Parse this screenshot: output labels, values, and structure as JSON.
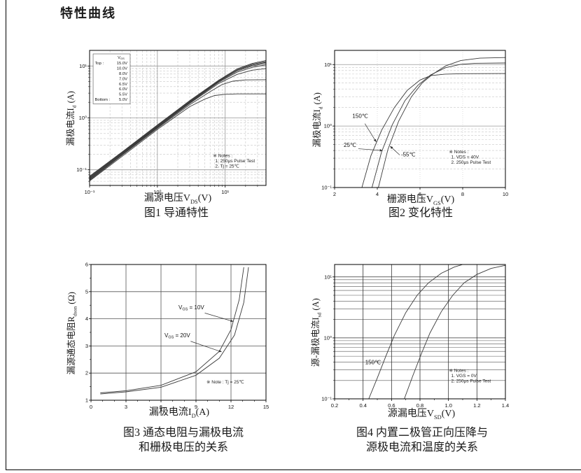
{
  "page": {
    "title": "特性曲线"
  },
  "chart_data": [
    {
      "id": "fig1",
      "type": "line",
      "caption_lines": [
        "图1 导通特性",
        ""
      ],
      "xlabel_parts": {
        "pre": "漏源电压V",
        "sub": "DS",
        "post": "(V)"
      },
      "ylabel_parts": {
        "pre": "漏极电流I",
        "sub": "d",
        "post": " (A)"
      },
      "xscale": "log",
      "yscale": "log",
      "xlim": [
        0.1,
        40
      ],
      "ylim": [
        0.05,
        20
      ],
      "xticks": [
        {
          "v": 0.1,
          "label": "10⁻¹"
        },
        {
          "v": 1,
          "label": "10⁰"
        },
        {
          "v": 10,
          "label": "10¹"
        }
      ],
      "yticks": [
        {
          "v": 0.1,
          "label": "10⁻¹"
        },
        {
          "v": 1,
          "label": "10⁰"
        },
        {
          "v": 10,
          "label": "10¹"
        }
      ],
      "grid": {
        "x_major": [
          1,
          10
        ],
        "y_major": [
          0.1,
          1,
          10
        ],
        "x_minor": [
          0.2,
          0.3,
          0.4,
          0.5,
          0.6,
          0.7,
          0.8,
          0.9,
          2,
          3,
          4,
          5,
          6,
          7,
          8,
          9,
          20,
          30
        ],
        "y_minor": [
          0.06,
          0.07,
          0.08,
          0.09,
          0.2,
          0.3,
          0.4,
          0.5,
          0.6,
          0.7,
          0.8,
          0.9,
          2,
          3,
          4,
          5,
          6,
          7,
          8,
          9
        ],
        "major_color": "#999999",
        "minor_color": "#c7c7c7",
        "minor_dash": "3,2"
      },
      "legend": {
        "x": 0.02,
        "y": 0.026,
        "w": 0.21,
        "h": 0.37,
        "header_pre": "V",
        "header_sub": "GS",
        "rows": [
          [
            "Top :",
            "15.0V"
          ],
          [
            "",
            "10.0V"
          ],
          [
            "",
            "8.0V"
          ],
          [
            "",
            "7.0V"
          ],
          [
            "",
            "6.5V"
          ],
          [
            "",
            "6.0V"
          ],
          [
            "",
            "5.5V"
          ],
          [
            "Bottom :",
            "5.0V"
          ]
        ]
      },
      "notes": {
        "x": 0.7,
        "y": 0.79,
        "lines": [
          "※ Notes :",
          "1. 250μs Pulse Test",
          "2. Tj = 25℃"
        ]
      },
      "series": [
        {
          "name": "15.0V",
          "points": [
            [
              0.1,
              0.075
            ],
            [
              0.3,
              0.22
            ],
            [
              1,
              0.73
            ],
            [
              3,
              2.15
            ],
            [
              8,
              5.3
            ],
            [
              15,
              8.8
            ],
            [
              25,
              11.2
            ],
            [
              40,
              12.8
            ]
          ]
        },
        {
          "name": "10.0V",
          "points": [
            [
              0.1,
              0.073
            ],
            [
              0.3,
              0.215
            ],
            [
              1,
              0.71
            ],
            [
              3,
              2.1
            ],
            [
              8,
              5.2
            ],
            [
              15,
              8.5
            ],
            [
              25,
              10.8
            ],
            [
              40,
              12.2
            ]
          ]
        },
        {
          "name": "8.0V",
          "points": [
            [
              0.1,
              0.071
            ],
            [
              0.3,
              0.21
            ],
            [
              1,
              0.7
            ],
            [
              3,
              2.05
            ],
            [
              8,
              5.1
            ],
            [
              15,
              8.3
            ],
            [
              25,
              10.4
            ],
            [
              40,
              11.8
            ]
          ]
        },
        {
          "name": "7.0V",
          "points": [
            [
              0.1,
              0.069
            ],
            [
              0.3,
              0.205
            ],
            [
              1,
              0.68
            ],
            [
              3,
              2.0
            ],
            [
              8,
              5.0
            ],
            [
              15,
              8.0
            ],
            [
              25,
              10.0
            ],
            [
              40,
              11.3
            ]
          ]
        },
        {
          "name": "6.5V",
          "points": [
            [
              0.1,
              0.067
            ],
            [
              0.3,
              0.2
            ],
            [
              1,
              0.665
            ],
            [
              3,
              1.95
            ],
            [
              8,
              4.85
            ],
            [
              15,
              7.6
            ],
            [
              25,
              9.4
            ],
            [
              40,
              10.6
            ]
          ]
        },
        {
          "name": "6.0V",
          "points": [
            [
              0.1,
              0.065
            ],
            [
              0.3,
              0.195
            ],
            [
              1,
              0.65
            ],
            [
              3,
              1.9
            ],
            [
              8,
              4.6
            ],
            [
              15,
              6.9
            ],
            [
              25,
              8.3
            ],
            [
              40,
              8.9
            ]
          ]
        },
        {
          "name": "5.5V",
          "points": [
            [
              0.1,
              0.063
            ],
            [
              0.3,
              0.19
            ],
            [
              1,
              0.63
            ],
            [
              3,
              1.8
            ],
            [
              6,
              3.2
            ],
            [
              9,
              4.4
            ],
            [
              13,
              5.1
            ],
            [
              20,
              5.4
            ],
            [
              40,
              5.45
            ]
          ]
        },
        {
          "name": "5.0V",
          "points": [
            [
              0.1,
              0.061
            ],
            [
              0.3,
              0.18
            ],
            [
              1,
              0.6
            ],
            [
              3,
              1.65
            ],
            [
              5,
              2.3
            ],
            [
              7,
              2.7
            ],
            [
              10,
              2.85
            ],
            [
              15,
              2.9
            ],
            [
              40,
              2.9
            ]
          ]
        }
      ],
      "annotations": []
    },
    {
      "id": "fig2",
      "type": "line",
      "caption_lines": [
        "图2 变化特性",
        ""
      ],
      "xlabel_parts": {
        "pre": "栅源电压V",
        "sub": "GS",
        "post": "(V)"
      },
      "ylabel_parts": {
        "pre": "漏极电流I",
        "sub": "d",
        "post": " (A)"
      },
      "xscale": "linear",
      "yscale": "log",
      "xlim": [
        2,
        10
      ],
      "ylim": [
        0.1,
        17
      ],
      "xticks": [
        {
          "v": 2,
          "label": "2"
        },
        {
          "v": 4,
          "label": "4"
        },
        {
          "v": 6,
          "label": "6"
        },
        {
          "v": 8,
          "label": "8"
        },
        {
          "v": 10,
          "label": "10"
        }
      ],
      "yticks": [
        {
          "v": 0.1,
          "label": "10⁻¹"
        },
        {
          "v": 1,
          "label": "10⁰"
        },
        {
          "v": 10,
          "label": "10¹"
        }
      ],
      "grid": {
        "x_major": [],
        "y_major": [
          1,
          10
        ],
        "x_minor": [
          4,
          6,
          8
        ],
        "y_minor": [
          0.2,
          0.3,
          0.4,
          0.5,
          0.6,
          0.7,
          0.8,
          0.9,
          2,
          3,
          4,
          5,
          6,
          7,
          8,
          9
        ],
        "major_color": "#999999",
        "minor_color": "#c7c7c7",
        "minor_dash": "3,2",
        "x_minor_dash": "1,2"
      },
      "notes": {
        "x": 0.67,
        "y": 0.75,
        "lines": [
          "※ Notes :",
          "1. VDS = 40V",
          "2. 250μs Pulse Test"
        ]
      },
      "series": [
        {
          "name": "150C",
          "points": [
            [
              3.28,
              0.1
            ],
            [
              3.7,
              0.33
            ],
            [
              4.2,
              0.85
            ],
            [
              4.8,
              2.0
            ],
            [
              5.4,
              3.8
            ],
            [
              6.0,
              5.6
            ],
            [
              6.5,
              6.6
            ],
            [
              7.2,
              7.0
            ],
            [
              8,
              7.1
            ],
            [
              10,
              7.15
            ]
          ]
        },
        {
          "name": "25C",
          "points": [
            [
              3.75,
              0.1
            ],
            [
              4.2,
              0.38
            ],
            [
              4.7,
              1.05
            ],
            [
              5.3,
              2.6
            ],
            [
              5.9,
              4.6
            ],
            [
              6.5,
              6.8
            ],
            [
              7.2,
              8.9
            ],
            [
              7.9,
              10.1
            ],
            [
              8.6,
              10.5
            ],
            [
              10,
              10.6
            ]
          ]
        },
        {
          "name": "-55C",
          "points": [
            [
              4.05,
              0.1
            ],
            [
              4.5,
              0.42
            ],
            [
              5.0,
              1.2
            ],
            [
              5.6,
              3.0
            ],
            [
              6.1,
              5.0
            ],
            [
              6.6,
              7.0
            ],
            [
              7.2,
              9.5
            ],
            [
              7.9,
              11.6
            ],
            [
              8.8,
              12.7
            ],
            [
              10,
              13.0
            ]
          ]
        }
      ],
      "annotations": [
        {
          "text": "150℃",
          "tx": 3.2,
          "ty": 1.35,
          "ax": 3.95,
          "ay": 0.55,
          "arrow": true,
          "off": 12
        },
        {
          "text": "25℃",
          "tx": 2.72,
          "ty": 0.46,
          "ax": 4.25,
          "ay": 0.4,
          "arrow": true,
          "off": 12
        },
        {
          "text": "-55℃",
          "tx": 5.45,
          "ty": 0.32,
          "ax": 4.6,
          "ay": 0.47,
          "arrow": true,
          "off": 14
        }
      ]
    },
    {
      "id": "fig3",
      "type": "line",
      "caption_lines": [
        "图3 通态电阻与漏极电流",
        "和栅极电压的关系"
      ],
      "xlabel_parts": {
        "pre": "漏极电流I",
        "sub": "D",
        "post": "(A)"
      },
      "ylabel_parts": {
        "pre": "漏源通态电阻R",
        "sub": "dson",
        "post": " (Ω)"
      },
      "xscale": "linear",
      "yscale": "linear",
      "xlim": [
        0,
        15
      ],
      "ylim": [
        1,
        6
      ],
      "xticks": [
        {
          "v": 0,
          "label": "0"
        },
        {
          "v": 3,
          "label": "3"
        },
        {
          "v": 6,
          "label": "6"
        },
        {
          "v": 9,
          "label": "9"
        },
        {
          "v": 12,
          "label": "12"
        },
        {
          "v": 15,
          "label": "15"
        }
      ],
      "yticks": [
        {
          "v": 1,
          "label": "1"
        },
        {
          "v": 2,
          "label": "2"
        },
        {
          "v": 3,
          "label": "3"
        },
        {
          "v": 4,
          "label": "4"
        },
        {
          "v": 5,
          "label": "5"
        },
        {
          "v": 6,
          "label": "6"
        }
      ],
      "xtick_minor": [
        1,
        2,
        4,
        5,
        7,
        8,
        10,
        11,
        13,
        14
      ],
      "ytick_minor": [
        1.5,
        2.5,
        3.5,
        4.5,
        5.5
      ],
      "grid": {
        "x_major": [
          3,
          6,
          9,
          12
        ],
        "y_major": [
          2,
          3,
          4,
          5
        ],
        "x_minor": [],
        "y_minor": [],
        "major_color": "#555555",
        "minor_color": "#cccccc"
      },
      "notes": {
        "x": 0.66,
        "y": 0.875,
        "lines": [
          "※ Note : Tj = 25℃"
        ]
      },
      "series": [
        {
          "name": "Vgs10V",
          "points": [
            [
              0.8,
              1.27
            ],
            [
              3,
              1.35
            ],
            [
              6,
              1.55
            ],
            [
              9,
              2.05
            ],
            [
              11,
              2.8
            ],
            [
              12,
              3.6
            ],
            [
              12.7,
              4.7
            ],
            [
              13.1,
              5.9
            ]
          ]
        },
        {
          "name": "Vgs20V",
          "points": [
            [
              0.8,
              1.23
            ],
            [
              3,
              1.31
            ],
            [
              6,
              1.48
            ],
            [
              9,
              1.92
            ],
            [
              11,
              2.55
            ],
            [
              12.3,
              3.4
            ],
            [
              13.1,
              4.6
            ],
            [
              13.5,
              5.9
            ]
          ]
        }
      ],
      "annotations": [
        {
          "pre": "V",
          "sub": "GS",
          "post": " = 10V",
          "tx": 8.6,
          "ty": 4.35,
          "ax": 12.2,
          "ay": 3.9,
          "arrow": true,
          "off": 20
        },
        {
          "pre": "V",
          "sub": "GS",
          "post": " = 20V",
          "tx": 7.4,
          "ty": 3.32,
          "ax": 11.2,
          "ay": 2.78,
          "arrow": true,
          "off": 20
        }
      ]
    },
    {
      "id": "fig4",
      "type": "line",
      "caption_lines": [
        "图4 内置二极管正向压降与",
        "源极电流和温度的关系"
      ],
      "xlabel_parts": {
        "pre": "源漏电压V",
        "sub": "SD",
        "post": "(V)"
      },
      "ylabel_parts": {
        "pre": "源-漏极电流I",
        "sub": "sd",
        "post": " (A)"
      },
      "xscale": "linear",
      "yscale": "log",
      "xlim": [
        0.2,
        1.4
      ],
      "ylim": [
        0.1,
        16
      ],
      "xticks": [
        {
          "v": 0.2,
          "label": "0.2"
        },
        {
          "v": 0.4,
          "label": "0.4"
        },
        {
          "v": 0.6,
          "label": "0.6"
        },
        {
          "v": 0.8,
          "label": "0.8"
        },
        {
          "v": 1.0,
          "label": "1.0"
        },
        {
          "v": 1.2,
          "label": "1.2"
        },
        {
          "v": 1.4,
          "label": "1.4"
        }
      ],
      "yticks": [
        {
          "v": 0.1,
          "label": "10⁻¹"
        },
        {
          "v": 1,
          "label": "10⁰"
        },
        {
          "v": 10,
          "label": "10¹"
        }
      ],
      "xtick_minor": [
        0.3,
        0.5,
        0.7,
        0.9,
        1.1,
        1.3
      ],
      "grid": {
        "x_major": [
          0.4,
          0.6,
          0.8,
          1.0,
          1.2
        ],
        "y_major": [
          1,
          10
        ],
        "x_minor": [],
        "y_minor": [
          0.2,
          0.3,
          0.4,
          0.5,
          0.6,
          0.7,
          0.8,
          0.9,
          2,
          3,
          4,
          5,
          6,
          7,
          8,
          9
        ],
        "major_color": "#333333",
        "minor_color": "#555555"
      },
      "notes": {
        "x": 0.67,
        "y": 0.8,
        "lines": [
          "※ Notes :",
          "1. VGS = 0V",
          "2. 250μs Pulse Test"
        ]
      },
      "series": [
        {
          "name": "150C",
          "points": [
            [
              0.44,
              0.1
            ],
            [
              0.5,
              0.22
            ],
            [
              0.56,
              0.5
            ],
            [
              0.62,
              1.1
            ],
            [
              0.7,
              2.6
            ],
            [
              0.78,
              5.0
            ],
            [
              0.86,
              8.0
            ],
            [
              0.95,
              11.5
            ],
            [
              1.04,
              14.5
            ],
            [
              1.1,
              16
            ]
          ]
        },
        {
          "name": "25C",
          "points": [
            [
              0.69,
              0.1
            ],
            [
              0.75,
              0.24
            ],
            [
              0.81,
              0.55
            ],
            [
              0.87,
              1.2
            ],
            [
              0.95,
              2.7
            ],
            [
              1.03,
              5.0
            ],
            [
              1.11,
              8.0
            ],
            [
              1.2,
              11.0
            ],
            [
              1.3,
              13.8
            ],
            [
              1.4,
              15.5
            ]
          ]
        }
      ],
      "annotations": [
        {
          "text": "150℃",
          "tx": 0.47,
          "ty": 0.37,
          "arrow": false
        }
      ]
    }
  ]
}
